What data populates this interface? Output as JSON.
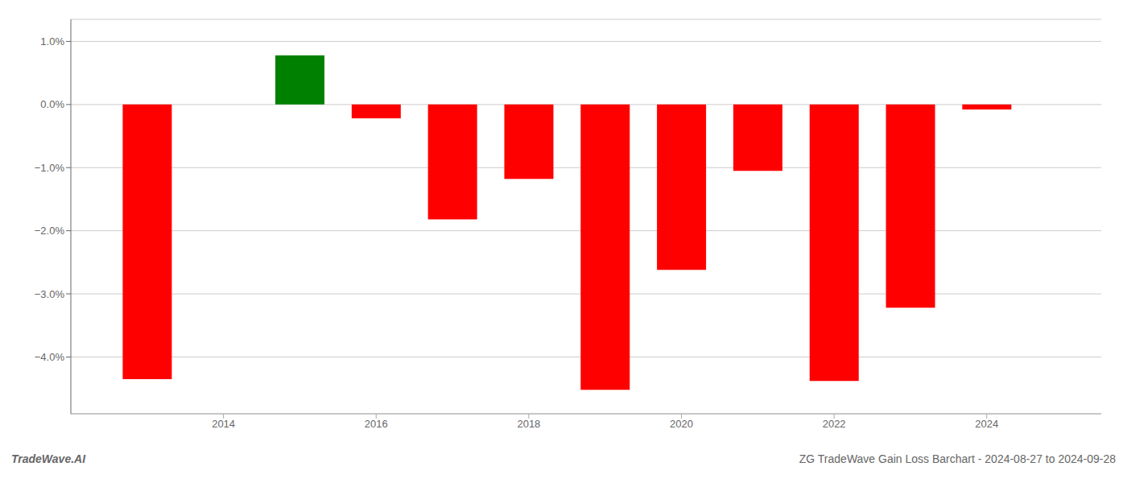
{
  "chart_data": {
    "type": "bar",
    "x": [
      2013,
      2015,
      2016,
      2017,
      2018,
      2019,
      2020,
      2021,
      2022,
      2023,
      2024
    ],
    "values": [
      -4.35,
      0.78,
      -0.22,
      -1.82,
      -1.18,
      -4.52,
      -2.62,
      -1.05,
      -4.38,
      -3.22,
      -0.08
    ],
    "colors": [
      "#ff0000",
      "#008000",
      "#ff0000",
      "#ff0000",
      "#ff0000",
      "#ff0000",
      "#ff0000",
      "#ff0000",
      "#ff0000",
      "#ff0000",
      "#ff0000"
    ],
    "xlim": [
      2012.0,
      2025.5
    ],
    "ylim": [
      -4.9,
      1.35
    ],
    "xticks": [
      2014,
      2016,
      2018,
      2020,
      2022,
      2024
    ],
    "yticks": [
      {
        "value": 1.0,
        "label": "1.0%"
      },
      {
        "value": 0.0,
        "label": "0.0%"
      },
      {
        "value": -1.0,
        "label": "−1.0%"
      },
      {
        "value": -2.0,
        "label": "−2.0%"
      },
      {
        "value": -3.0,
        "label": "−3.0%"
      },
      {
        "value": -4.0,
        "label": "−4.0%"
      }
    ],
    "grid": true,
    "annotations": [
      "TradeWave.AI",
      "ZG TradeWave Gain Loss Barchart - 2024-08-27 to 2024-09-28"
    ]
  }
}
